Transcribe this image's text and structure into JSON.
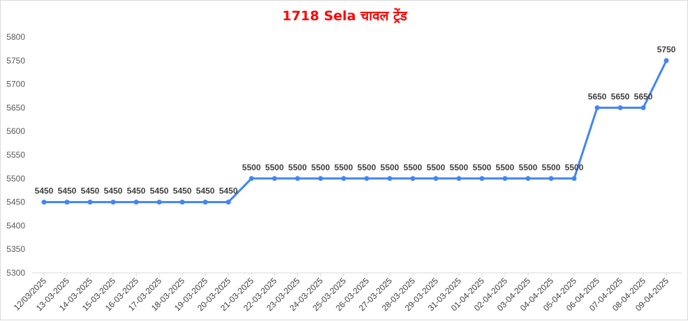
{
  "chart_data": {
    "type": "line",
    "title": "1718 Sela चावल ट्रेंड",
    "xlabel": "",
    "ylabel": "",
    "ylim": [
      5300,
      5800
    ],
    "yticks": [
      5300,
      5350,
      5400,
      5450,
      5500,
      5550,
      5600,
      5650,
      5700,
      5750,
      5800
    ],
    "grid": false,
    "legend": "none",
    "line_color": "#4285f4",
    "title_color": "#ff0000",
    "categories": [
      "12/03/2025",
      "13-03-2025",
      "14-03-2025",
      "15-03-2025",
      "16-03-2025",
      "17-03-2025",
      "18-03-2025",
      "19-03-2025",
      "20-03-2025",
      "21-03-2025",
      "22-03-2025",
      "23-03-2025",
      "24-03-2025",
      "25-03-2025",
      "26-03-2025",
      "27-03-2025",
      "28-03-2025",
      "29-03-2025",
      "31-03-2025",
      "01-04-2025",
      "02-04-2025",
      "03-04-2025",
      "04-04-2025",
      "05-04-2025",
      "06-04-2025",
      "07-04-2025",
      "08-04-2025",
      "09-04-2025"
    ],
    "series": [
      {
        "values": [
          5450,
          5450,
          5450,
          5450,
          5450,
          5450,
          5450,
          5450,
          5450,
          5500,
          5500,
          5500,
          5500,
          5500,
          5500,
          5500,
          5500,
          5500,
          5500,
          5500,
          5500,
          5500,
          5500,
          5500,
          5650,
          5650,
          5650,
          5750
        ],
        "data_labels": [
          "5450",
          "5450",
          "5450",
          "5450",
          "5450",
          "5450",
          "5450",
          "5450",
          "5450",
          "5500",
          "5500",
          "5500",
          "5500",
          "5500",
          "5500",
          "5500",
          "5500",
          "5500",
          "5500",
          "5500",
          "5500",
          "5500",
          "5500",
          "5500",
          "5650",
          "5650",
          "5650",
          "5750"
        ]
      }
    ]
  }
}
